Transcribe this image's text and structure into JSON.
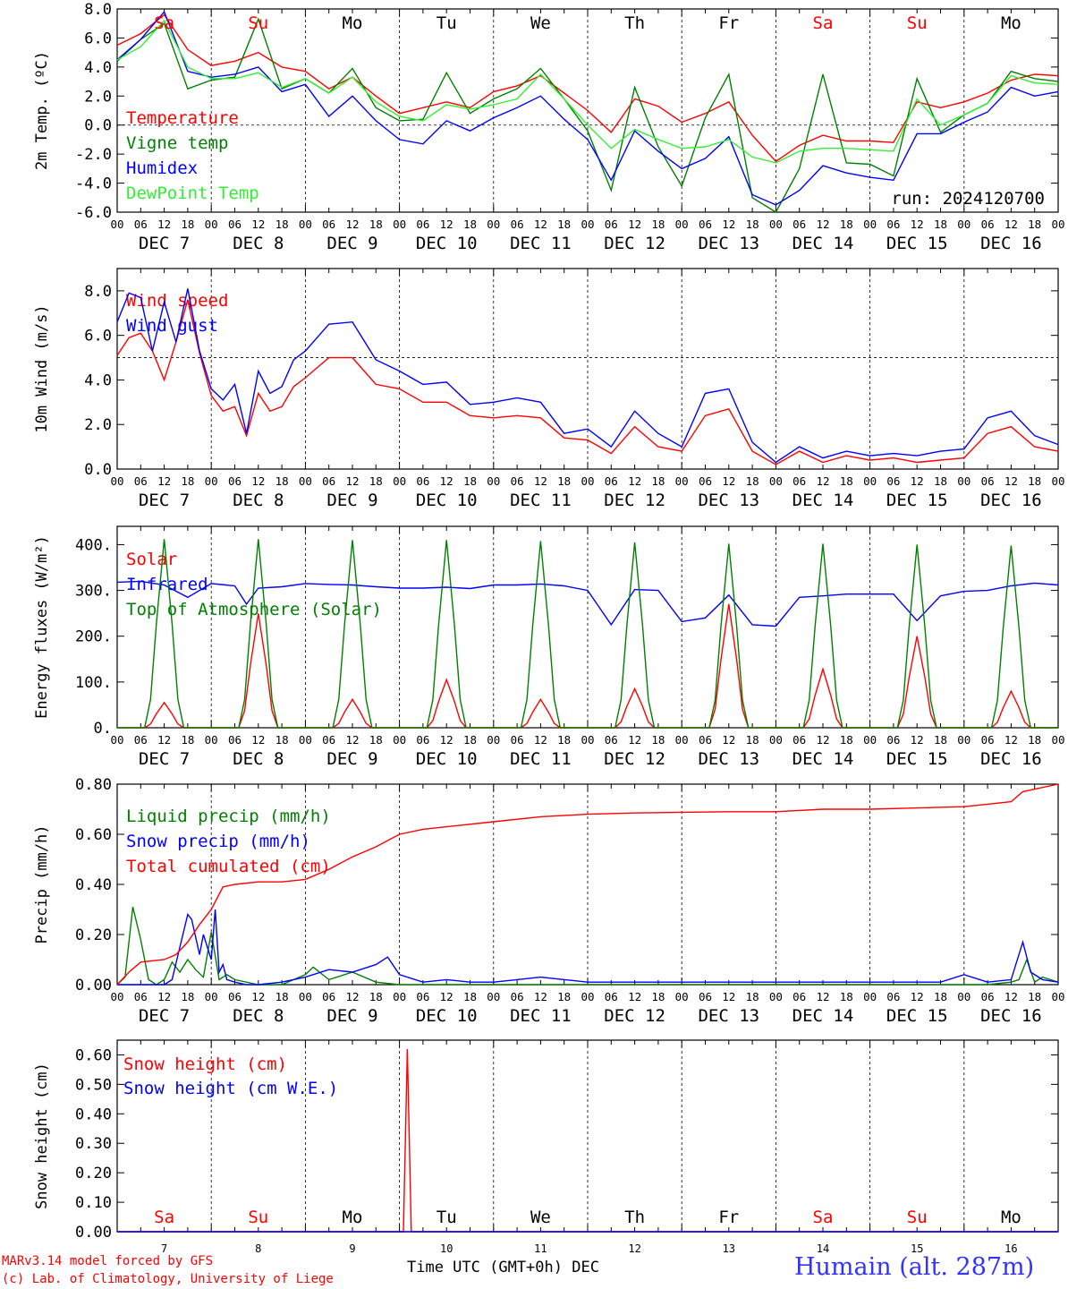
{
  "footer": {
    "model_line": "MARv3.14 model forced by GFS",
    "credit_line": "(c) Lab. of Climatology, University of Liege",
    "time_label": "Time UTC (GMT+0h)",
    "month_label": "DEC",
    "station": "Humain (alt. 287m)"
  },
  "colors": {
    "red": "#ff0000",
    "green": "#008000",
    "blue": "#0000ff",
    "lightgreen": "#33ee33",
    "station_blue": "#3333ff"
  },
  "x_axis": {
    "hour_ticks": [
      "00",
      "06",
      "12",
      "18"
    ],
    "day_labels": [
      "DEC  7",
      "DEC  8",
      "DEC  9",
      "DEC 10",
      "DEC 11",
      "DEC 12",
      "DEC 13",
      "DEC 14",
      "DEC 15",
      "DEC 16"
    ],
    "weekdays": [
      "Sa",
      "Su",
      "Mo",
      "Tu",
      "We",
      "Th",
      "Fr",
      "Sa",
      "Su",
      "Mo"
    ],
    "weekday_colors": [
      "red",
      "red",
      "black",
      "black",
      "black",
      "black",
      "black",
      "red",
      "red",
      "black"
    ],
    "day_numbers": [
      "7",
      "8",
      "9",
      "10",
      "11",
      "12",
      "13",
      "14",
      "15",
      "16"
    ]
  },
  "chart_data": [
    {
      "type": "line",
      "ylabel": "2m Temp. (ºC)",
      "ylim": [
        -6,
        8
      ],
      "yticks": [
        "8.0",
        "6.0",
        "4.0",
        "2.0",
        "0.0",
        "-2.0",
        "-4.0",
        "-6.0"
      ],
      "yvals": [
        8,
        6,
        4,
        2,
        0,
        -2,
        -4,
        -6
      ],
      "refline": 0,
      "annotation": "run: 2024120700",
      "x_hours_start": 0,
      "x_hours_end": 240,
      "series": [
        {
          "name": "Temperature",
          "color": "red",
          "x": [
            0,
            6,
            12,
            18,
            24,
            30,
            36,
            42,
            48,
            54,
            60,
            66,
            72,
            78,
            84,
            90,
            96,
            102,
            108,
            114,
            120,
            126,
            132,
            138,
            144,
            150,
            156,
            162,
            168,
            174,
            180,
            186,
            192,
            198,
            204,
            210,
            216,
            222,
            228,
            234,
            240
          ],
          "values": [
            5.5,
            6.3,
            7.6,
            5.2,
            4.1,
            4.4,
            5.0,
            4.0,
            3.7,
            2.5,
            3.3,
            2.0,
            0.8,
            1.2,
            1.6,
            1.2,
            2.3,
            2.7,
            3.4,
            2.2,
            1.0,
            -0.5,
            1.8,
            1.3,
            0.2,
            0.8,
            1.6,
            -0.7,
            -2.5,
            -1.4,
            -0.7,
            -1.1,
            -1.1,
            -1.2,
            1.6,
            1.2,
            1.6,
            2.2,
            3.1,
            3.5,
            3.4
          ]
        },
        {
          "name": "Vigne temp",
          "color": "green",
          "x": [
            0,
            6,
            12,
            18,
            24,
            30,
            36,
            42,
            48,
            54,
            60,
            66,
            72,
            78,
            84,
            90,
            96,
            102,
            108,
            114,
            120,
            126,
            132,
            138,
            144,
            150,
            156,
            162,
            168,
            174,
            180,
            186,
            192,
            198,
            204,
            210,
            216,
            222,
            228,
            234,
            240
          ],
          "values": [
            4.4,
            5.9,
            7.0,
            2.5,
            3.1,
            3.3,
            7.3,
            2.5,
            3.2,
            2.2,
            3.9,
            1.2,
            0.3,
            0.4,
            3.6,
            0.8,
            1.8,
            2.5,
            3.9,
            1.8,
            -0.4,
            -4.5,
            2.6,
            -1.5,
            -4.2,
            0.5,
            3.5,
            -5.0,
            -6.5,
            -3.0,
            3.5,
            -2.6,
            -2.7,
            -3.5,
            3.2,
            -0.5,
            0.7,
            1.5,
            3.7,
            3.2,
            3.0
          ]
        },
        {
          "name": "Humidex",
          "color": "blue",
          "x": [
            0,
            6,
            12,
            18,
            24,
            30,
            36,
            42,
            48,
            54,
            60,
            66,
            72,
            78,
            84,
            90,
            96,
            102,
            108,
            114,
            120,
            126,
            132,
            138,
            144,
            150,
            156,
            162,
            168,
            174,
            180,
            186,
            192,
            198,
            204,
            210,
            216,
            222,
            228,
            234,
            240
          ],
          "values": [
            4.5,
            5.9,
            7.8,
            3.7,
            3.3,
            3.5,
            4.0,
            2.3,
            2.8,
            0.6,
            2.0,
            0.3,
            -1.0,
            -1.3,
            0.3,
            -0.4,
            0.5,
            1.2,
            2.0,
            0.4,
            -1.0,
            -3.8,
            -0.4,
            -1.8,
            -3.0,
            -2.3,
            -0.8,
            -4.8,
            -5.5,
            -4.5,
            -2.8,
            -3.3,
            -3.6,
            -3.8,
            -0.6,
            -0.6,
            0.2,
            0.9,
            2.6,
            2.0,
            2.3
          ]
        },
        {
          "name": "DewPoint Temp",
          "color": "lightgreen",
          "x": [
            0,
            6,
            12,
            18,
            24,
            30,
            36,
            42,
            48,
            54,
            60,
            66,
            72,
            78,
            84,
            90,
            96,
            102,
            108,
            114,
            120,
            126,
            132,
            138,
            144,
            150,
            156,
            162,
            168,
            174,
            180,
            186,
            192,
            198,
            204,
            210,
            216,
            222,
            228,
            234,
            240
          ],
          "values": [
            4.5,
            5.4,
            7.2,
            4.0,
            3.2,
            3.2,
            3.6,
            2.6,
            3.2,
            2.2,
            3.3,
            1.6,
            0.6,
            0.3,
            1.4,
            1.1,
            1.4,
            1.8,
            3.5,
            1.8,
            0.0,
            -1.6,
            -0.3,
            -1.0,
            -1.6,
            -1.5,
            -1.0,
            -2.2,
            -2.6,
            -1.8,
            -1.6,
            -1.6,
            -1.7,
            -1.8,
            1.8,
            0.0,
            0.7,
            1.5,
            3.4,
            2.9,
            2.8
          ]
        }
      ]
    },
    {
      "type": "line",
      "ylabel": "10m Wind (m/s)",
      "ylim": [
        0,
        9
      ],
      "yticks": [
        "8.0",
        "6.0",
        "4.0",
        "2.0",
        "0.0"
      ],
      "yvals": [
        8,
        6,
        4,
        2,
        0
      ],
      "refline": 5,
      "series": [
        {
          "name": "Wind speed",
          "color": "red",
          "x": [
            0,
            3,
            6,
            9,
            12,
            15,
            18,
            21,
            24,
            27,
            30,
            33,
            36,
            39,
            42,
            45,
            48,
            54,
            60,
            66,
            72,
            78,
            84,
            90,
            96,
            102,
            108,
            114,
            120,
            126,
            132,
            138,
            144,
            150,
            156,
            162,
            168,
            174,
            180,
            186,
            192,
            198,
            204,
            210,
            216,
            222,
            228,
            234,
            240
          ],
          "values": [
            5.1,
            5.9,
            6.1,
            5.3,
            4.0,
            5.7,
            7.6,
            5.2,
            3.3,
            2.6,
            2.8,
            1.5,
            3.4,
            2.6,
            2.8,
            3.7,
            4.1,
            5.0,
            5.0,
            3.8,
            3.6,
            3.0,
            3.0,
            2.4,
            2.3,
            2.4,
            2.3,
            1.4,
            1.3,
            0.7,
            1.9,
            1.0,
            0.8,
            2.4,
            2.7,
            0.8,
            0.2,
            0.8,
            0.3,
            0.6,
            0.4,
            0.5,
            0.3,
            0.4,
            0.5,
            1.6,
            1.9,
            1.0,
            0.8
          ]
        },
        {
          "name": "Wind gust",
          "color": "blue",
          "x": [
            0,
            3,
            6,
            9,
            12,
            15,
            18,
            21,
            24,
            27,
            30,
            33,
            36,
            39,
            42,
            45,
            48,
            54,
            60,
            66,
            72,
            78,
            84,
            90,
            96,
            102,
            108,
            114,
            120,
            126,
            132,
            138,
            144,
            150,
            156,
            162,
            168,
            174,
            180,
            186,
            192,
            198,
            204,
            210,
            216,
            222,
            228,
            234,
            240
          ],
          "values": [
            6.6,
            7.9,
            7.7,
            5.3,
            7.5,
            5.7,
            8.1,
            5.3,
            3.6,
            3.1,
            3.8,
            1.6,
            4.4,
            3.4,
            3.7,
            4.9,
            5.3,
            6.5,
            6.6,
            4.9,
            4.4,
            3.8,
            3.9,
            2.9,
            3.0,
            3.2,
            3.0,
            1.6,
            1.8,
            1.0,
            2.6,
            1.6,
            1.0,
            3.4,
            3.6,
            1.2,
            0.3,
            1.0,
            0.5,
            0.8,
            0.6,
            0.7,
            0.6,
            0.8,
            0.9,
            2.3,
            2.6,
            1.5,
            1.1
          ]
        }
      ]
    },
    {
      "type": "line",
      "ylabel": "Energy fluxes (W/m²)",
      "ylim": [
        0,
        440
      ],
      "yticks": [
        "400.",
        "300.",
        "200.",
        "100.",
        "0."
      ],
      "yvals": [
        400,
        300,
        200,
        100,
        0
      ],
      "series": [
        {
          "name": "Solar",
          "color": "red",
          "daily_peaks": [
            55,
            250,
            62,
            105,
            62,
            85,
            270,
            128,
            200,
            80
          ]
        },
        {
          "name": "Infrared",
          "color": "blue",
          "x": [
            0,
            6,
            12,
            18,
            24,
            30,
            33,
            36,
            42,
            48,
            54,
            60,
            66,
            72,
            78,
            84,
            90,
            96,
            102,
            108,
            114,
            120,
            126,
            132,
            138,
            144,
            150,
            156,
            162,
            168,
            174,
            180,
            186,
            192,
            198,
            204,
            210,
            216,
            222,
            228,
            234,
            240
          ],
          "values": [
            318,
            320,
            312,
            285,
            315,
            310,
            270,
            305,
            308,
            315,
            313,
            312,
            308,
            305,
            305,
            307,
            304,
            312,
            312,
            314,
            310,
            300,
            225,
            302,
            300,
            232,
            240,
            290,
            225,
            222,
            285,
            288,
            292,
            292,
            292,
            234,
            288,
            298,
            300,
            310,
            316,
            312
          ]
        },
        {
          "name": "Top of Atmosphere (Solar)",
          "color": "green",
          "daily_peaks": [
            412,
            412,
            410,
            410,
            408,
            405,
            402,
            402,
            400,
            398
          ]
        }
      ]
    },
    {
      "type": "line",
      "ylabel": "Precip (mm/h)",
      "ylim": [
        0,
        0.8
      ],
      "yticks": [
        "0.80",
        "0.60",
        "0.40",
        "0.20",
        "0.00"
      ],
      "yvals": [
        0.8,
        0.6,
        0.4,
        0.2,
        0
      ],
      "series": [
        {
          "name": "Liquid precip (mm/h)",
          "color": "green",
          "x": [
            0,
            2,
            4,
            6,
            8,
            10,
            12,
            14,
            16,
            18,
            20,
            22,
            24,
            26,
            28,
            30,
            36,
            42,
            48,
            50,
            54,
            60,
            66,
            72,
            78,
            84,
            90,
            96,
            120,
            144,
            168,
            192,
            216,
            222,
            228,
            230,
            232,
            234,
            236,
            240
          ],
          "values": [
            0,
            0.03,
            0.31,
            0.18,
            0.02,
            0,
            0.02,
            0.09,
            0.05,
            0.1,
            0.06,
            0.03,
            0.21,
            0.02,
            0.04,
            0.02,
            0,
            0,
            0.04,
            0.07,
            0.02,
            0.05,
            0.01,
            0,
            0,
            0,
            0,
            0,
            0,
            0,
            0,
            0,
            0,
            0,
            0.01,
            0.02,
            0.1,
            0.01,
            0.03,
            0.01
          ]
        },
        {
          "name": "Snow precip (mm/h)",
          "color": "blue",
          "x": [
            0,
            6,
            12,
            14,
            16,
            18,
            19,
            21,
            22,
            24,
            25,
            26,
            27,
            28,
            30,
            33,
            36,
            42,
            48,
            54,
            60,
            66,
            69,
            72,
            78,
            84,
            90,
            96,
            102,
            108,
            114,
            120,
            150,
            180,
            210,
            216,
            222,
            228,
            231,
            233,
            236,
            240
          ],
          "values": [
            0,
            0,
            0,
            0.02,
            0.15,
            0.28,
            0.26,
            0.12,
            0.2,
            0.1,
            0.3,
            0.05,
            0.08,
            0.02,
            0.01,
            0,
            0,
            0.01,
            0.03,
            0.06,
            0.05,
            0.08,
            0.11,
            0.04,
            0.01,
            0.02,
            0.01,
            0.01,
            0.02,
            0.03,
            0.02,
            0.01,
            0.01,
            0.01,
            0.01,
            0.04,
            0.01,
            0.02,
            0.17,
            0.05,
            0.02,
            0.01
          ]
        },
        {
          "name": "Total cumulated (cm)",
          "color": "red",
          "x": [
            0,
            3,
            6,
            12,
            15,
            18,
            21,
            24,
            27,
            30,
            36,
            42,
            48,
            54,
            60,
            66,
            72,
            78,
            84,
            96,
            108,
            120,
            132,
            144,
            156,
            168,
            180,
            192,
            204,
            216,
            222,
            228,
            231,
            234,
            240
          ],
          "values": [
            0,
            0.05,
            0.09,
            0.1,
            0.12,
            0.17,
            0.24,
            0.3,
            0.39,
            0.4,
            0.41,
            0.41,
            0.42,
            0.46,
            0.51,
            0.55,
            0.6,
            0.62,
            0.63,
            0.65,
            0.67,
            0.68,
            0.685,
            0.688,
            0.69,
            0.69,
            0.7,
            0.7,
            0.705,
            0.71,
            0.72,
            0.73,
            0.77,
            0.78,
            0.8
          ]
        }
      ]
    },
    {
      "type": "line",
      "ylabel": "Snow height (cm)",
      "ylim": [
        0,
        0.65
      ],
      "yticks": [
        "0.60",
        "0.50",
        "0.40",
        "0.30",
        "0.20",
        "0.10",
        "0.00"
      ],
      "yvals": [
        0.6,
        0.5,
        0.4,
        0.3,
        0.2,
        0.1,
        0
      ],
      "series": [
        {
          "name": "Snow height (cm)",
          "color": "red",
          "x": [
            0,
            72,
            73,
            74,
            75,
            240
          ],
          "values": [
            0,
            0,
            0,
            0.62,
            0,
            0
          ]
        },
        {
          "name": "Snow height (cm W.E.)",
          "color": "blue",
          "x": [
            0,
            240
          ],
          "values": [
            0,
            0
          ]
        }
      ]
    }
  ]
}
